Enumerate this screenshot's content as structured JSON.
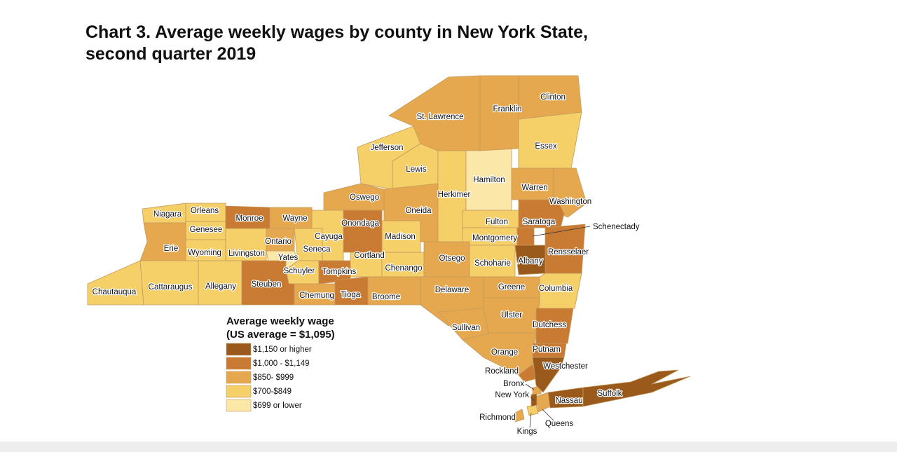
{
  "title": [
    "Chart 3. Average weekly wages by county in New York State,",
    "second quarter 2019"
  ],
  "legend": {
    "title": [
      "Average weekly wage",
      "(US average = $1,095)"
    ],
    "items": [
      {
        "label": "$1,150 or higher",
        "color": "#9a5a1c",
        "counties": [
          "Albany",
          "Westchester",
          "New York",
          "Nassau",
          "Suffolk"
        ]
      },
      {
        "label": "$1,000 - $1,149",
        "color": "#c97a33",
        "counties": [
          "Monroe",
          "Steuben",
          "Tompkins",
          "Onondaga",
          "Tioga",
          "Saratoga",
          "Schenectady",
          "Rensselaer",
          "Dutchess",
          "Putnam",
          "Rockland"
        ]
      },
      {
        "label": "$850- $999",
        "color": "#e6a84e",
        "counties": [
          "Erie",
          "Ontario",
          "Wayne",
          "Chemung",
          "Broome",
          "Oswego",
          "Oneida",
          "St. Lawrence",
          "Franklin",
          "Clinton",
          "Warren",
          "Washington",
          "Otsego",
          "Delaware",
          "Greene",
          "Ulster",
          "Sullivan",
          "Orange",
          "Bronx",
          "Richmond",
          "Queens"
        ]
      },
      {
        "label": "$700-$849",
        "color": "#f5cf68",
        "counties": [
          "Chautauqua",
          "Cattaraugus",
          "Allegany",
          "Niagara",
          "Orleans",
          "Genesee",
          "Wyoming",
          "Livingston",
          "Seneca",
          "Schuyler",
          "Cayuga",
          "Cortland",
          "Chenango",
          "Madison",
          "Jefferson",
          "Lewis",
          "Essex",
          "Herkimer",
          "Fulton",
          "Montgomery",
          "Schoharie",
          "Columbia",
          "Kings"
        ]
      },
      {
        "label": "$699 or lower",
        "color": "#fbe7a8",
        "counties": [
          "Yates",
          "Hamilton"
        ]
      }
    ]
  }
}
